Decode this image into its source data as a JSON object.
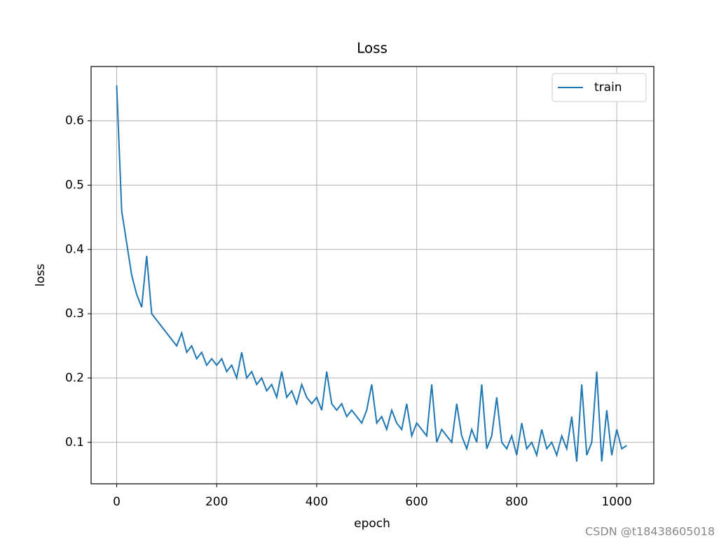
{
  "chart_data": {
    "type": "line",
    "title": "Loss",
    "x_label": "epoch",
    "y_label": "loss",
    "x": [
      0,
      10,
      20,
      30,
      40,
      50,
      60,
      70,
      80,
      90,
      100,
      110,
      120,
      130,
      140,
      150,
      160,
      170,
      180,
      190,
      200,
      210,
      220,
      230,
      240,
      250,
      260,
      270,
      280,
      290,
      300,
      310,
      320,
      330,
      340,
      350,
      360,
      370,
      380,
      390,
      400,
      410,
      420,
      430,
      440,
      450,
      460,
      470,
      480,
      490,
      500,
      510,
      520,
      530,
      540,
      550,
      560,
      570,
      580,
      590,
      600,
      610,
      620,
      630,
      640,
      650,
      660,
      670,
      680,
      690,
      700,
      710,
      720,
      730,
      740,
      750,
      760,
      770,
      780,
      790,
      800,
      810,
      820,
      830,
      840,
      850,
      860,
      870,
      880,
      890,
      900,
      910,
      920,
      930,
      940,
      950,
      960,
      970,
      980,
      990,
      1000,
      1010,
      1020
    ],
    "series": [
      {
        "name": "train",
        "color": "#1f77b4",
        "values": [
          0.655,
          0.46,
          0.41,
          0.36,
          0.33,
          0.31,
          0.39,
          0.3,
          0.29,
          0.28,
          0.27,
          0.26,
          0.25,
          0.27,
          0.24,
          0.25,
          0.23,
          0.24,
          0.22,
          0.23,
          0.22,
          0.23,
          0.21,
          0.22,
          0.2,
          0.24,
          0.2,
          0.21,
          0.19,
          0.2,
          0.18,
          0.19,
          0.17,
          0.21,
          0.17,
          0.18,
          0.16,
          0.19,
          0.17,
          0.16,
          0.17,
          0.15,
          0.21,
          0.16,
          0.15,
          0.16,
          0.14,
          0.15,
          0.14,
          0.13,
          0.15,
          0.19,
          0.13,
          0.14,
          0.12,
          0.15,
          0.13,
          0.12,
          0.16,
          0.11,
          0.13,
          0.12,
          0.11,
          0.19,
          0.1,
          0.12,
          0.11,
          0.1,
          0.16,
          0.11,
          0.09,
          0.12,
          0.1,
          0.19,
          0.09,
          0.11,
          0.17,
          0.1,
          0.09,
          0.11,
          0.08,
          0.13,
          0.09,
          0.1,
          0.08,
          0.12,
          0.09,
          0.1,
          0.08,
          0.11,
          0.09,
          0.14,
          0.07,
          0.19,
          0.08,
          0.1,
          0.21,
          0.07,
          0.15,
          0.08,
          0.12,
          0.09,
          0.095
        ]
      }
    ],
    "xlim": [
      -51.15,
      1074.15
    ],
    "ylim": [
      0.0355,
      0.6845
    ],
    "xticks": [
      0,
      200,
      400,
      600,
      800,
      1000
    ],
    "yticks": [
      0.1,
      0.2,
      0.3,
      0.4,
      0.5,
      0.6
    ],
    "grid": true,
    "legend": "upper right",
    "watermark": "CSDN @t18438605018"
  }
}
